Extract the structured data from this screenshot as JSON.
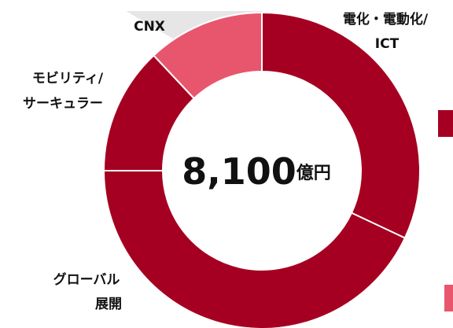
{
  "chart_data": {
    "type": "donut",
    "categories": [
      [
        "電化・電動化/",
        "ICT"
      ],
      [
        "グローバル",
        "展開"
      ],
      [
        "モビリティ/",
        "サーキュラー"
      ],
      [
        "CNX"
      ]
    ],
    "values": [
      32,
      43,
      13,
      12
    ],
    "colors": [
      "#a50021",
      "#a50021",
      "#a50021",
      "#e8566e"
    ],
    "center_value": "8,100",
    "center_unit": "億円"
  }
}
